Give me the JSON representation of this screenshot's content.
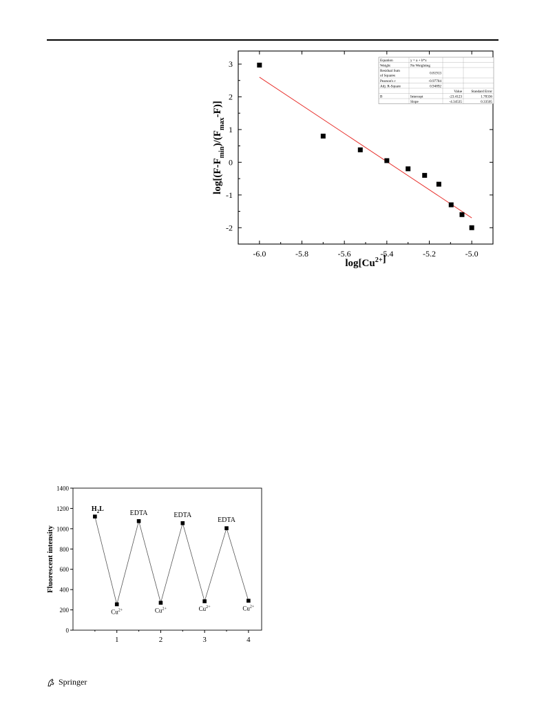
{
  "chart_data": [
    {
      "type": "scatter",
      "title": "",
      "xlabel": "log[Cu2+]",
      "ylabel": "log[(F-Fmin)/(Fmax-F)]",
      "xlim": [
        -6.1,
        -4.9
      ],
      "ylim": [
        -2.5,
        3.4
      ],
      "xticks": [
        "-6.0",
        "-5.8",
        "-5.6",
        "-5.4",
        "-5.2",
        "-5.0"
      ],
      "yticks": [
        "3",
        "2",
        "1",
        "0",
        "-1",
        "-2"
      ],
      "points": [
        {
          "x": -6.0,
          "y": 2.97
        },
        {
          "x": -5.7,
          "y": 0.8
        },
        {
          "x": -5.525,
          "y": 0.38
        },
        {
          "x": -5.4,
          "y": 0.05
        },
        {
          "x": -5.3,
          "y": -0.2
        },
        {
          "x": -5.222,
          "y": -0.4
        },
        {
          "x": -5.155,
          "y": -0.67
        },
        {
          "x": -5.097,
          "y": -1.3
        },
        {
          "x": -5.046,
          "y": -1.6
        },
        {
          "x": -5.0,
          "y": -2.0
        }
      ],
      "fit_line": {
        "x": [
          -6.0,
          -5.0
        ],
        "y": [
          2.6,
          -1.7
        ],
        "color": "#e8302c"
      },
      "stats_table": [
        [
          "Equation",
          "y = a + b*x",
          "",
          ""
        ],
        [
          "Weight",
          "No Weighting",
          "",
          ""
        ],
        [
          "Residual Sum of Squares",
          "0.81913",
          "",
          ""
        ],
        [
          "Pearson's r",
          "-0.97704",
          "",
          ""
        ],
        [
          "Adj. R-Square",
          "0.94892",
          "",
          ""
        ],
        [
          "",
          "",
          "Value",
          "Standard Error"
        ],
        [
          "B",
          "Intercept",
          "-23.4123",
          "1.78336"
        ],
        [
          "",
          "Slope",
          "-4.34535",
          "0.33505"
        ]
      ]
    },
    {
      "type": "line",
      "title": "",
      "xlabel": "",
      "ylabel": "Fluorescent intensity",
      "xlim": [
        0,
        4.3
      ],
      "ylim": [
        0,
        1400
      ],
      "xticks": [
        "1",
        "2",
        "3",
        "4"
      ],
      "yticks": [
        "1400",
        "1200",
        "1000",
        "800",
        "600",
        "400",
        "200",
        "0"
      ],
      "points": [
        {
          "x": 0.5,
          "y": 1120,
          "label": "H2L"
        },
        {
          "x": 1.0,
          "y": 255,
          "label": "Cu2+"
        },
        {
          "x": 1.5,
          "y": 1075,
          "label": "EDTA"
        },
        {
          "x": 2.0,
          "y": 270,
          "label": "Cu2+"
        },
        {
          "x": 2.5,
          "y": 1055,
          "label": "EDTA"
        },
        {
          "x": 3.0,
          "y": 285,
          "label": "Cu2+"
        },
        {
          "x": 3.5,
          "y": 1005,
          "label": "EDTA"
        },
        {
          "x": 4.0,
          "y": 290,
          "label": "Cu2+"
        }
      ]
    }
  ],
  "footer": {
    "publisher": "Springer"
  }
}
